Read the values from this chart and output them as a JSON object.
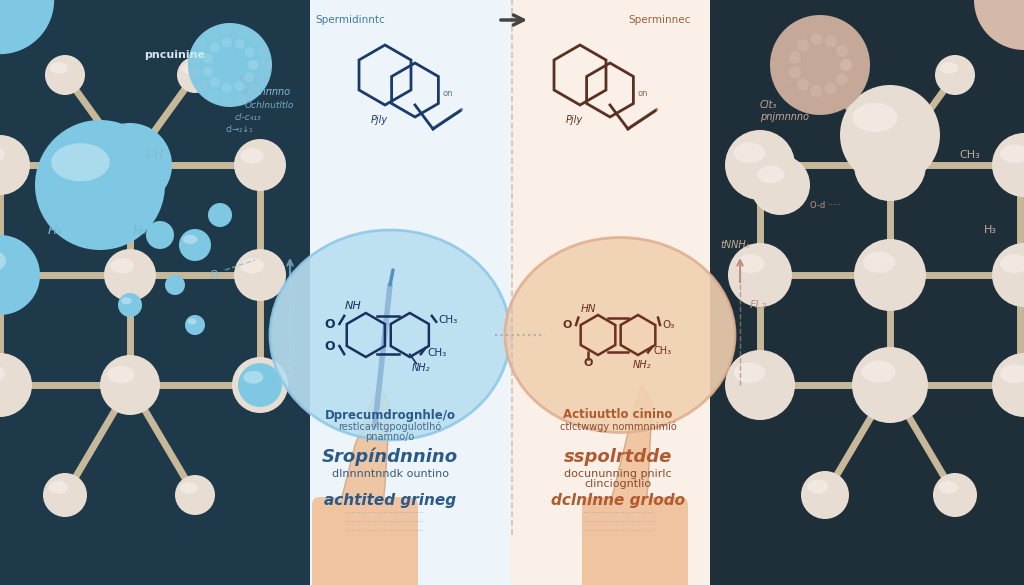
{
  "left_bg": "#1e3a4a",
  "right_bg": "#1e2f3a",
  "center_bg": "#f5f0ea",
  "center_left_bg": "#eef5fa",
  "center_right_bg": "#faf0e8",
  "left_accent_blue": "#6bbcd6",
  "left_sphere_big": "#7ec8e3",
  "right_sphere": "#ddd0c4",
  "white_sphere": "#e8ddd2",
  "stick_color_left": "#c8b89a",
  "stick_color_right": "#c8b89a",
  "text_blue": "#2a5a8a",
  "text_rust": "#b05a30",
  "center_divider": "#cccccc",
  "left_circle_fill": "#b8dff0",
  "right_circle_fill": "#f0d0b0",
  "hand_skin": "#f0c4a0",
  "textured_sphere_left": "#7ec8e3",
  "textured_sphere_right": "#d4b8a8",
  "label1_left": "Dprecumdrognhle/o",
  "label1_left_sub1": "restlcavltgpogulotlhó",
  "label1_left_sub2": "pnamno/o",
  "label2_left": "Sropíndnnino",
  "label2_left_sub": "dInnnntnndk ountino",
  "label1_right": "Actiuuttlo cinino",
  "label1_right_sub": "ctlctwwgy nommnnimió",
  "label2_right": "sspolrtdde",
  "label2_right_sub1": "docununning pnirlc",
  "label2_right_sub2": "clinciogntlio",
  "bottom_left": "achtited grineg",
  "bottom_right": "dclnlnne grlodo"
}
